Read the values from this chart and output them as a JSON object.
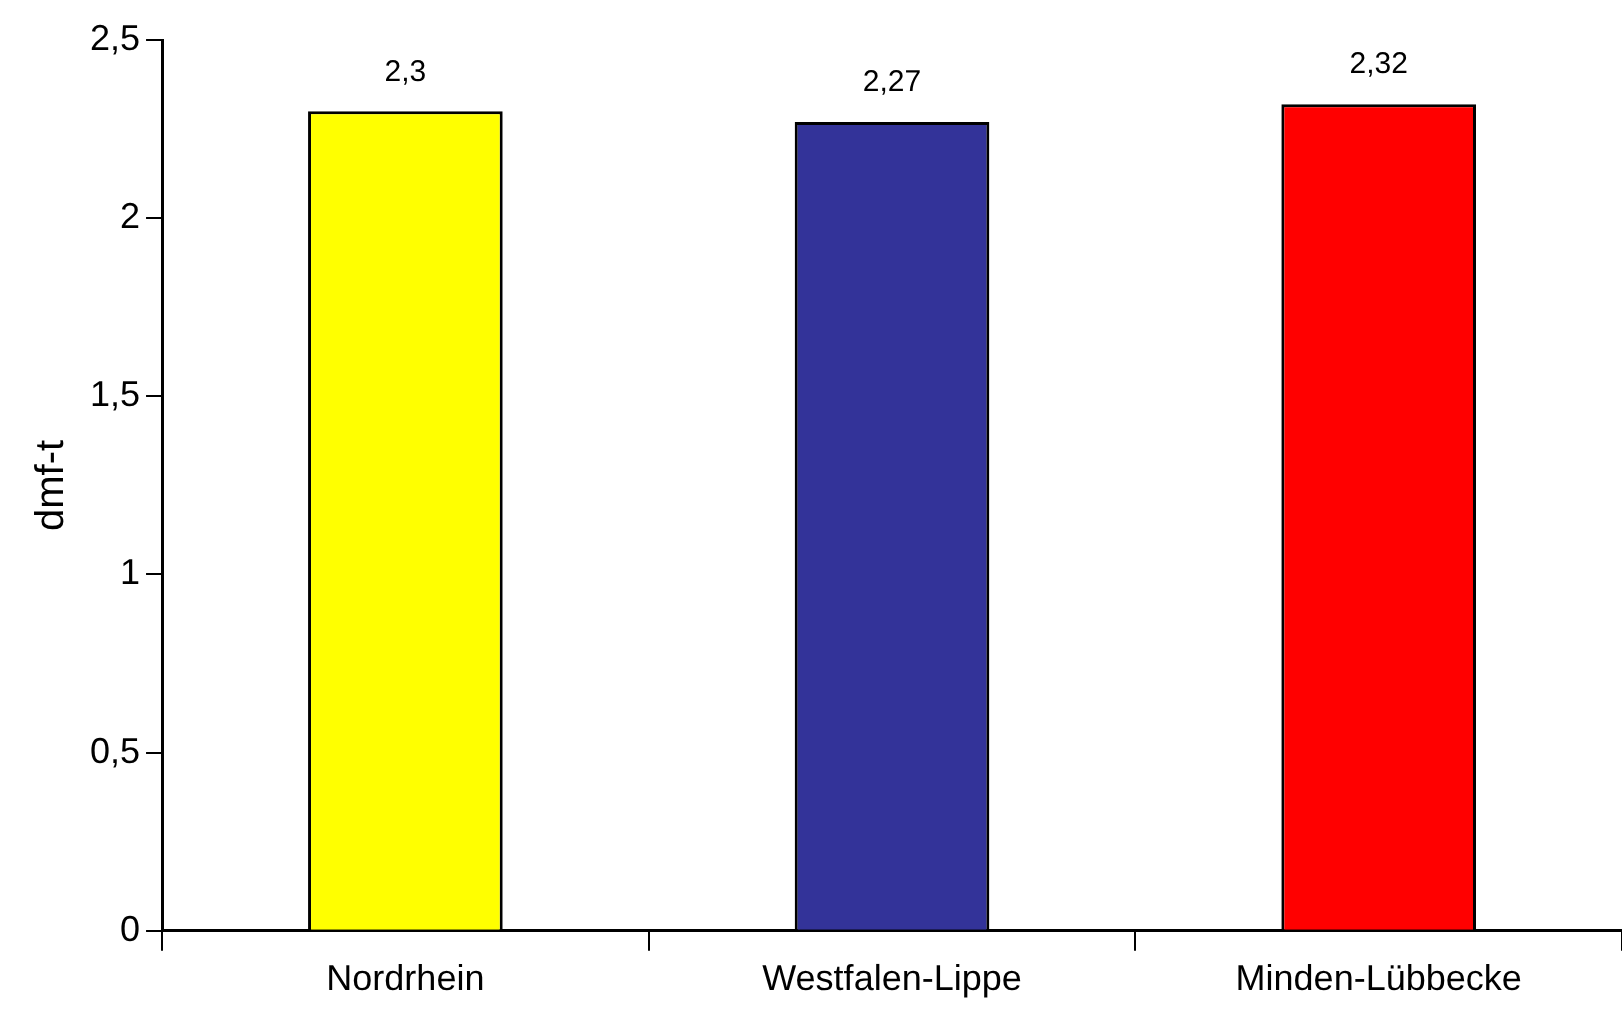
{
  "chart_data": {
    "type": "bar",
    "ylabel": "dmf-t",
    "categories": [
      "Nordrhein",
      "Westfalen-Lippe",
      "Minden-Lübbecke"
    ],
    "values": [
      2.3,
      2.27,
      2.32
    ],
    "colors": [
      "#ffff00",
      "#333399",
      "#ff0000"
    ],
    "value_labels": [
      "2,3",
      "2,27",
      "2,32"
    ],
    "ylim": [
      0,
      2.5
    ],
    "yticks": [
      0,
      {
        "value": 0.5,
        "label": "0,5"
      },
      1,
      {
        "value": 1.5,
        "label": "1,5"
      },
      2,
      {
        "value": 2.5,
        "label": "2,5"
      }
    ],
    "grid": false,
    "legend": false
  }
}
